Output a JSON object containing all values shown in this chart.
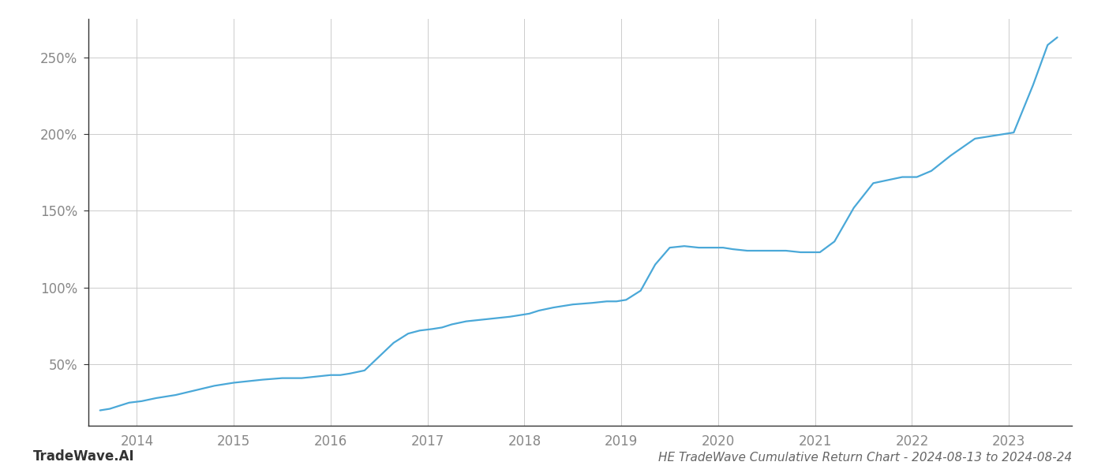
{
  "title": "HE TradeWave Cumulative Return Chart - 2024-08-13 to 2024-08-24",
  "watermark": "TradeWave.AI",
  "line_color": "#4aa8d8",
  "background_color": "#ffffff",
  "grid_color": "#cccccc",
  "x_values": [
    2013.62,
    2013.72,
    2013.82,
    2013.92,
    2014.05,
    2014.2,
    2014.4,
    2014.6,
    2014.8,
    2015.0,
    2015.15,
    2015.3,
    2015.5,
    2015.7,
    2015.85,
    2016.0,
    2016.1,
    2016.2,
    2016.35,
    2016.5,
    2016.65,
    2016.8,
    2016.92,
    2017.05,
    2017.15,
    2017.25,
    2017.4,
    2017.55,
    2017.7,
    2017.85,
    2017.95,
    2018.05,
    2018.15,
    2018.3,
    2018.5,
    2018.7,
    2018.85,
    2018.95,
    2019.05,
    2019.2,
    2019.35,
    2019.5,
    2019.65,
    2019.8,
    2019.92,
    2020.05,
    2020.15,
    2020.3,
    2020.5,
    2020.7,
    2020.85,
    2020.92,
    2021.05,
    2021.2,
    2021.4,
    2021.6,
    2021.75,
    2021.9,
    2022.05,
    2022.2,
    2022.4,
    2022.65,
    2022.85,
    2022.95,
    2023.05,
    2023.25,
    2023.4,
    2023.5
  ],
  "y_values": [
    20,
    21,
    23,
    25,
    26,
    28,
    30,
    33,
    36,
    38,
    39,
    40,
    41,
    41,
    42,
    43,
    43,
    44,
    46,
    55,
    64,
    70,
    72,
    73,
    74,
    76,
    78,
    79,
    80,
    81,
    82,
    83,
    85,
    87,
    89,
    90,
    91,
    91,
    92,
    98,
    115,
    126,
    127,
    126,
    126,
    126,
    125,
    124,
    124,
    124,
    123,
    123,
    123,
    130,
    152,
    168,
    170,
    172,
    172,
    176,
    186,
    197,
    199,
    200,
    201,
    232,
    258,
    263
  ],
  "xlim": [
    2013.5,
    2023.65
  ],
  "ylim": [
    10,
    275
  ],
  "xticks": [
    2014,
    2015,
    2016,
    2017,
    2018,
    2019,
    2020,
    2021,
    2022,
    2023
  ],
  "yticks": [
    50,
    100,
    150,
    200,
    250
  ],
  "xlabel": "",
  "ylabel": "",
  "line_width": 1.6,
  "title_fontsize": 11,
  "tick_fontsize": 12,
  "watermark_fontsize": 12
}
